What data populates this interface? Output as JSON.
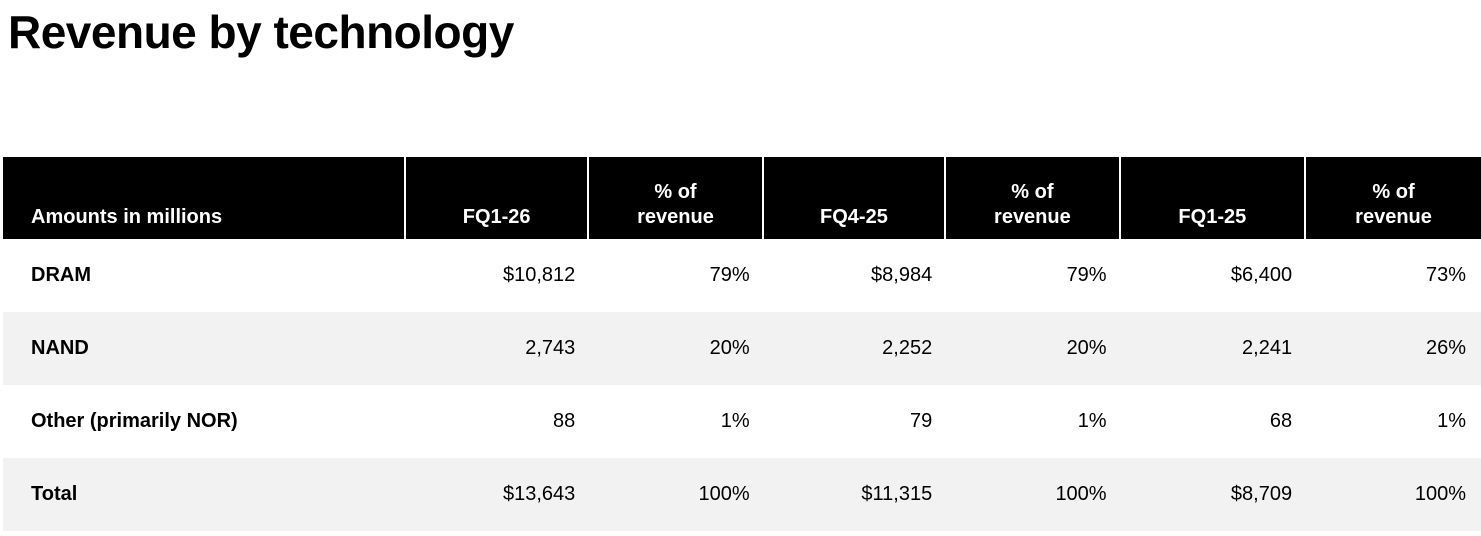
{
  "page_title": "Revenue by technology",
  "table": {
    "columns": [
      {
        "label": "Amounts in millions"
      },
      {
        "label": "FQ1-26"
      },
      {
        "label": "% of\nrevenue"
      },
      {
        "label": "FQ4-25"
      },
      {
        "label": "% of\nrevenue"
      },
      {
        "label": "FQ1-25"
      },
      {
        "label": "% of\nrevenue"
      }
    ],
    "rows": [
      {
        "label": "DRAM",
        "values": [
          "$10,812",
          "79%",
          "$8,984",
          "79%",
          "$6,400",
          "73%"
        ]
      },
      {
        "label": "NAND",
        "values": [
          "2,743",
          "20%",
          "2,252",
          "20%",
          "2,241",
          "26%"
        ]
      },
      {
        "label": "Other (primarily NOR)",
        "values": [
          "88",
          "1%",
          "79",
          "1%",
          "68",
          "1%"
        ]
      },
      {
        "label": "Total",
        "values": [
          "$13,643",
          "100%",
          "$11,315",
          "100%",
          "$8,709",
          "100%"
        ]
      }
    ],
    "colors": {
      "header_bg": "#000000",
      "header_text": "#ffffff",
      "row_bg": "#ffffff",
      "row_alt_bg": "#f2f2f2",
      "text": "#000000"
    }
  }
}
